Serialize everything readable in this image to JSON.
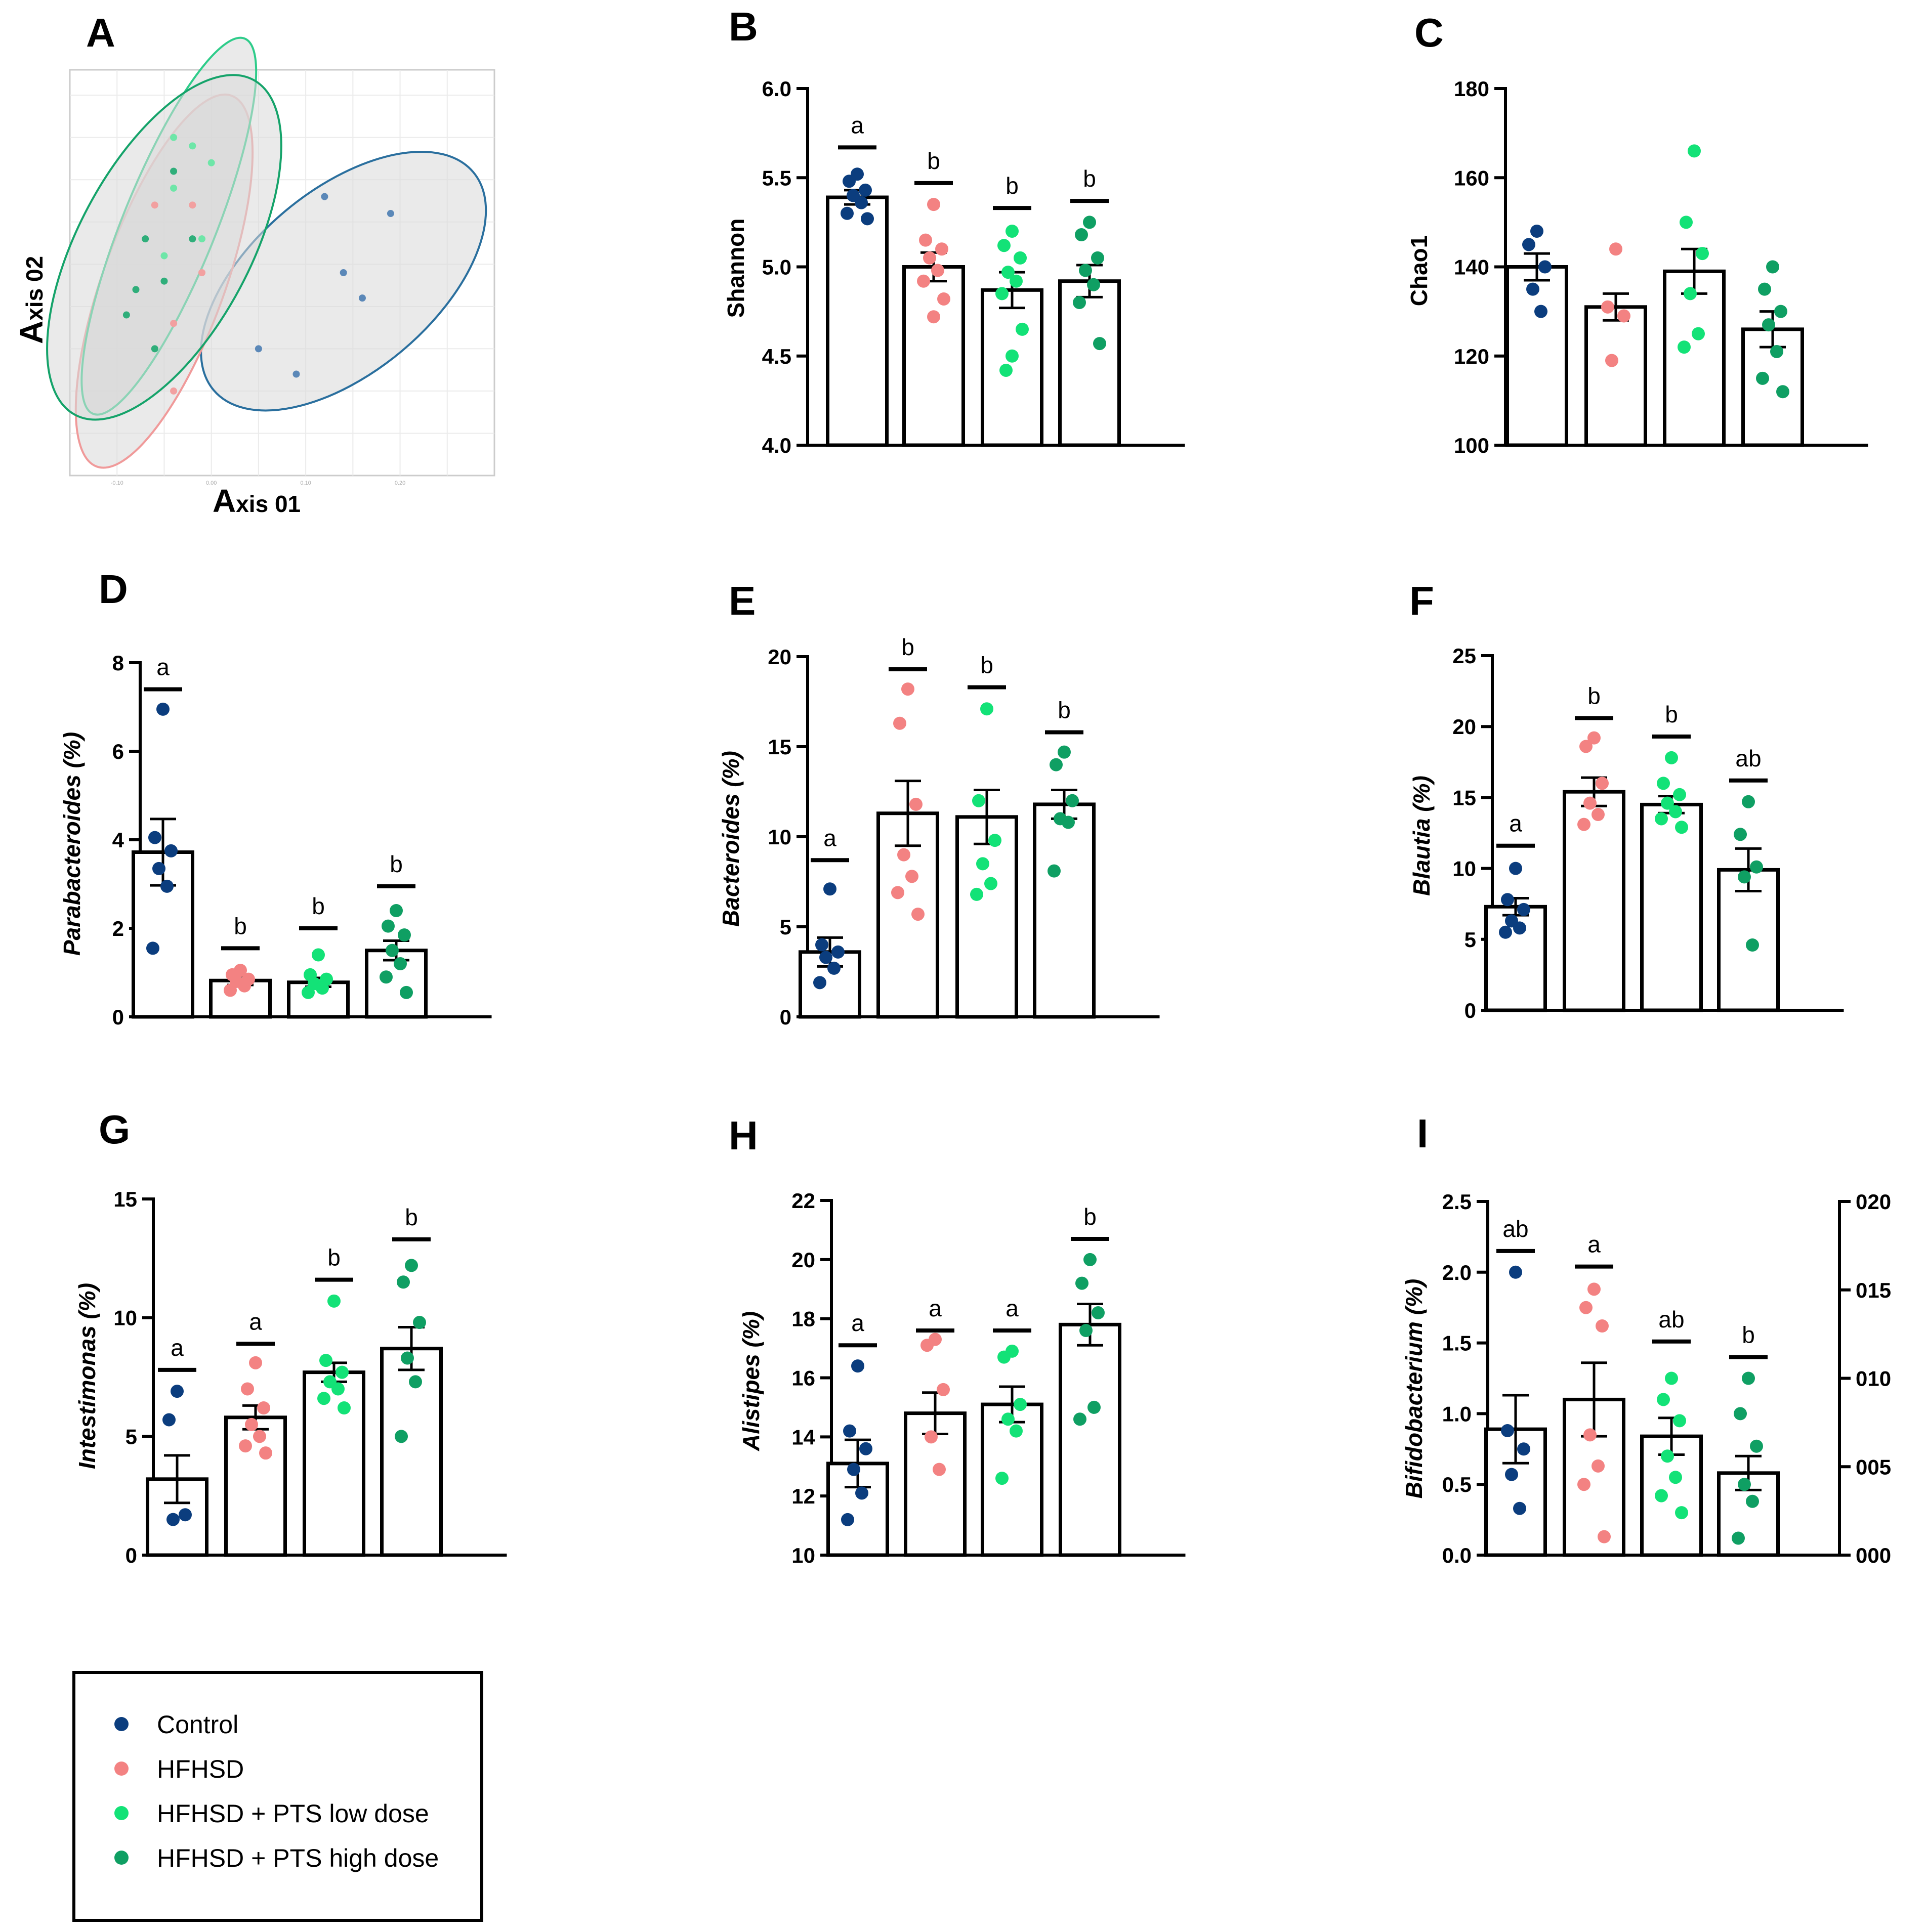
{
  "groups": [
    {
      "name": "Control",
      "color": "#0b3d7e"
    },
    {
      "name": "HFHSD",
      "color": "#f38282"
    },
    {
      "name": "HFHSD + PTS low dose",
      "color": "#13e277"
    },
    {
      "name": "HFHSD + PTS high dose",
      "color": "#0f9f63"
    }
  ],
  "pcoa": {
    "label": "A",
    "xlabel_big": "A",
    "xlabel_rest": "xis 01",
    "ylabel_big": "A",
    "ylabel_rest": "xis 02",
    "tick_x": [
      "-0.10",
      "0.00",
      "0.10",
      "0.20"
    ],
    "points": [
      {
        "g": 0,
        "x": 0.12,
        "y": 0.13
      },
      {
        "g": 0,
        "x": 0.19,
        "y": 0.11
      },
      {
        "g": 0,
        "x": 0.14,
        "y": 0.04
      },
      {
        "g": 0,
        "x": 0.16,
        "y": 0.01
      },
      {
        "g": 0,
        "x": 0.05,
        "y": -0.05
      },
      {
        "g": 0,
        "x": 0.09,
        "y": -0.08
      },
      {
        "g": 1,
        "x": -0.06,
        "y": 0.12
      },
      {
        "g": 1,
        "x": -0.02,
        "y": 0.12
      },
      {
        "g": 1,
        "x": -0.01,
        "y": 0.04
      },
      {
        "g": 1,
        "x": -0.04,
        "y": -0.02
      },
      {
        "g": 1,
        "x": -0.04,
        "y": -0.1
      },
      {
        "g": 2,
        "x": -0.04,
        "y": 0.2
      },
      {
        "g": 2,
        "x": -0.02,
        "y": 0.19
      },
      {
        "g": 2,
        "x": 0.0,
        "y": 0.17
      },
      {
        "g": 2,
        "x": -0.04,
        "y": 0.14
      },
      {
        "g": 2,
        "x": -0.01,
        "y": 0.08
      },
      {
        "g": 2,
        "x": -0.05,
        "y": 0.06
      },
      {
        "g": 3,
        "x": -0.04,
        "y": 0.16
      },
      {
        "g": 3,
        "x": -0.07,
        "y": 0.08
      },
      {
        "g": 3,
        "x": -0.05,
        "y": 0.03
      },
      {
        "g": 3,
        "x": -0.08,
        "y": 0.02
      },
      {
        "g": 3,
        "x": -0.09,
        "y": -0.01
      },
      {
        "g": 3,
        "x": -0.06,
        "y": -0.05
      },
      {
        "g": 3,
        "x": -0.02,
        "y": 0.08
      }
    ]
  },
  "chart_data": [
    {
      "id": "B",
      "type": "bar",
      "label": "B",
      "ylabel": "Shannon",
      "ylabel_italic": false,
      "ylim": [
        4.0,
        6.0
      ],
      "ticks": [
        "4.0",
        "4.5",
        "5.0",
        "5.5",
        "6.0"
      ],
      "tick_values": [
        4.0,
        4.5,
        5.0,
        5.5,
        6.0
      ],
      "means": [
        5.39,
        5.0,
        4.87,
        4.92
      ],
      "sem": [
        0.04,
        0.08,
        0.1,
        0.09
      ],
      "letters": [
        "a",
        "b",
        "b",
        "b"
      ],
      "sig_y": [
        5.67,
        5.47,
        5.33,
        5.37
      ],
      "points": [
        [
          5.52,
          5.48,
          5.43,
          5.4,
          5.36,
          5.3,
          5.27
        ],
        [
          5.35,
          5.15,
          5.1,
          5.05,
          4.98,
          4.92,
          4.82,
          4.72
        ],
        [
          5.2,
          5.12,
          5.05,
          4.97,
          4.92,
          4.85,
          4.65,
          4.5,
          4.42
        ],
        [
          5.25,
          5.18,
          5.05,
          4.98,
          4.9,
          4.8,
          4.57
        ]
      ]
    },
    {
      "id": "C",
      "type": "bar",
      "label": "C",
      "ylabel": "Chao1",
      "ylabel_italic": false,
      "ylim": [
        100,
        180
      ],
      "ticks": [
        "100",
        "120",
        "140",
        "160",
        "180"
      ],
      "tick_values": [
        100,
        120,
        140,
        160,
        180
      ],
      "means": [
        140,
        131,
        139,
        126
      ],
      "sem": [
        3,
        3,
        5,
        4
      ],
      "letters": [
        "",
        "",
        "",
        ""
      ],
      "sig_y": [],
      "points": [
        [
          148,
          145,
          140,
          135,
          130
        ],
        [
          144,
          131,
          129,
          119
        ],
        [
          166,
          150,
          143,
          134,
          125,
          122
        ],
        [
          140,
          135,
          130,
          127,
          121,
          115,
          112
        ]
      ]
    },
    {
      "id": "D",
      "type": "bar",
      "label": "D",
      "ylabel": "Parabacteroides (%)",
      "ylabel_italic": true,
      "ylim": [
        0,
        8
      ],
      "ticks": [
        "0",
        "2",
        "4",
        "6",
        "8"
      ],
      "tick_values": [
        0,
        2,
        4,
        6,
        8
      ],
      "means": [
        3.72,
        0.82,
        0.78,
        1.5
      ],
      "sem": [
        0.75,
        0.1,
        0.1,
        0.22
      ],
      "letters": [
        "a",
        "b",
        "b",
        "b"
      ],
      "sig_y": [
        7.4,
        1.55,
        2.0,
        2.95
      ],
      "points": [
        [
          6.95,
          4.05,
          3.75,
          3.35,
          2.95,
          1.55
        ],
        [
          1.05,
          0.95,
          0.85,
          0.8,
          0.7,
          0.6
        ],
        [
          1.4,
          0.95,
          0.85,
          0.75,
          0.65,
          0.55
        ],
        [
          2.4,
          2.05,
          1.85,
          1.5,
          1.2,
          0.9,
          0.55
        ]
      ]
    },
    {
      "id": "E",
      "type": "bar",
      "label": "E",
      "ylabel": "Bacteroides (%)",
      "ylabel_italic": true,
      "ylim": [
        0,
        20
      ],
      "ticks": [
        "0",
        "5",
        "10",
        "15",
        "20"
      ],
      "tick_values": [
        0,
        5,
        10,
        15,
        20
      ],
      "means": [
        3.6,
        11.3,
        11.1,
        11.8
      ],
      "sem": [
        0.8,
        1.8,
        1.5,
        0.8
      ],
      "letters": [
        "a",
        "b",
        "b",
        "b"
      ],
      "sig_y": [
        8.7,
        19.3,
        18.3,
        15.8
      ],
      "points": [
        [
          7.1,
          4.0,
          3.6,
          3.3,
          2.7,
          1.9
        ],
        [
          18.2,
          16.3,
          11.8,
          9.0,
          7.8,
          6.9,
          5.7
        ],
        [
          17.1,
          12.0,
          9.8,
          8.5,
          7.4,
          6.8
        ],
        [
          14.7,
          14.0,
          12.0,
          11.0,
          10.8,
          8.1
        ]
      ]
    },
    {
      "id": "F",
      "type": "bar",
      "label": "F",
      "ylabel": "Blautia (%)",
      "ylabel_italic": true,
      "ylim": [
        0,
        25
      ],
      "ticks": [
        "0",
        "5",
        "10",
        "15",
        "20",
        "25"
      ],
      "tick_values": [
        0,
        5,
        10,
        15,
        20,
        25
      ],
      "means": [
        7.3,
        15.4,
        14.5,
        9.9
      ],
      "sem": [
        0.6,
        1.0,
        0.6,
        1.5
      ],
      "letters": [
        "a",
        "b",
        "b",
        "ab"
      ],
      "sig_y": [
        11.6,
        20.6,
        19.3,
        16.2
      ],
      "points": [
        [
          10.0,
          7.8,
          7.1,
          6.3,
          5.8,
          5.5
        ],
        [
          19.2,
          18.6,
          16.0,
          14.6,
          13.8,
          13.1
        ],
        [
          17.8,
          16.0,
          15.2,
          14.6,
          14.0,
          13.5,
          12.9
        ],
        [
          14.7,
          12.4,
          10.1,
          9.4,
          4.6
        ]
      ]
    },
    {
      "id": "G",
      "type": "bar",
      "label": "G",
      "ylabel": "Intestimonas (%)",
      "ylabel_italic": true,
      "ylim": [
        0,
        15
      ],
      "ticks": [
        "0",
        "5",
        "10",
        "15"
      ],
      "tick_values": [
        0,
        5,
        10,
        15
      ],
      "means": [
        3.2,
        5.8,
        7.7,
        8.7
      ],
      "sem": [
        1.0,
        0.5,
        0.4,
        0.9
      ],
      "letters": [
        "a",
        "a",
        "b",
        "b"
      ],
      "sig_y": [
        7.8,
        8.9,
        11.6,
        13.3
      ],
      "points": [
        [
          6.9,
          5.7,
          1.7,
          1.5
        ],
        [
          8.1,
          7.0,
          6.2,
          5.5,
          5.0,
          4.6,
          4.3
        ],
        [
          10.7,
          8.2,
          7.7,
          7.3,
          7.0,
          6.6,
          6.2
        ],
        [
          12.2,
          11.5,
          9.8,
          8.3,
          7.3,
          5.0
        ]
      ]
    },
    {
      "id": "H",
      "type": "bar",
      "label": "H",
      "ylabel": "Alistipes (%)",
      "ylabel_italic": true,
      "ylim": [
        10,
        22
      ],
      "ticks": [
        "10",
        "12",
        "14",
        "16",
        "18",
        "20",
        "22"
      ],
      "tick_values": [
        10,
        12,
        14,
        16,
        18,
        20,
        22
      ],
      "means": [
        13.1,
        14.8,
        15.1,
        17.8
      ],
      "sem": [
        0.8,
        0.7,
        0.6,
        0.7
      ],
      "letters": [
        "a",
        "a",
        "a",
        "b"
      ],
      "sig_y": [
        17.1,
        17.6,
        17.6,
        20.7
      ],
      "points": [
        [
          16.4,
          14.2,
          13.6,
          12.9,
          12.1,
          11.2
        ],
        [
          17.3,
          17.1,
          15.6,
          14.0,
          12.9
        ],
        [
          16.9,
          16.7,
          15.1,
          14.6,
          14.2,
          12.6
        ],
        [
          20.0,
          19.2,
          18.2,
          17.6,
          15.0,
          14.6
        ]
      ]
    },
    {
      "id": "I",
      "type": "bar",
      "label": "I",
      "ylabel": "Bifidobacterium (%)",
      "ylabel_italic": true,
      "ylim": [
        0,
        2.5
      ],
      "ticks": [
        "0.0",
        "0.5",
        "1.0",
        "1.5",
        "2.0",
        "2.5"
      ],
      "tick_values": [
        0,
        0.5,
        1.0,
        1.5,
        2.0,
        2.5
      ],
      "right_ticks": [
        "000",
        "005",
        "010",
        "015",
        "020"
      ],
      "means": [
        0.89,
        1.1,
        0.84,
        0.58
      ],
      "sem": [
        0.24,
        0.26,
        0.13,
        0.12
      ],
      "letters": [
        "ab",
        "a",
        "ab",
        "b"
      ],
      "sig_y": [
        2.15,
        2.04,
        1.51,
        1.4
      ],
      "points": [
        [
          2.0,
          0.88,
          0.75,
          0.57,
          0.33
        ],
        [
          1.88,
          1.75,
          1.62,
          0.85,
          0.63,
          0.5,
          0.13
        ],
        [
          1.25,
          1.1,
          0.95,
          0.7,
          0.55,
          0.42,
          0.3
        ],
        [
          1.25,
          1.0,
          0.77,
          0.5,
          0.38,
          0.12
        ]
      ]
    }
  ]
}
